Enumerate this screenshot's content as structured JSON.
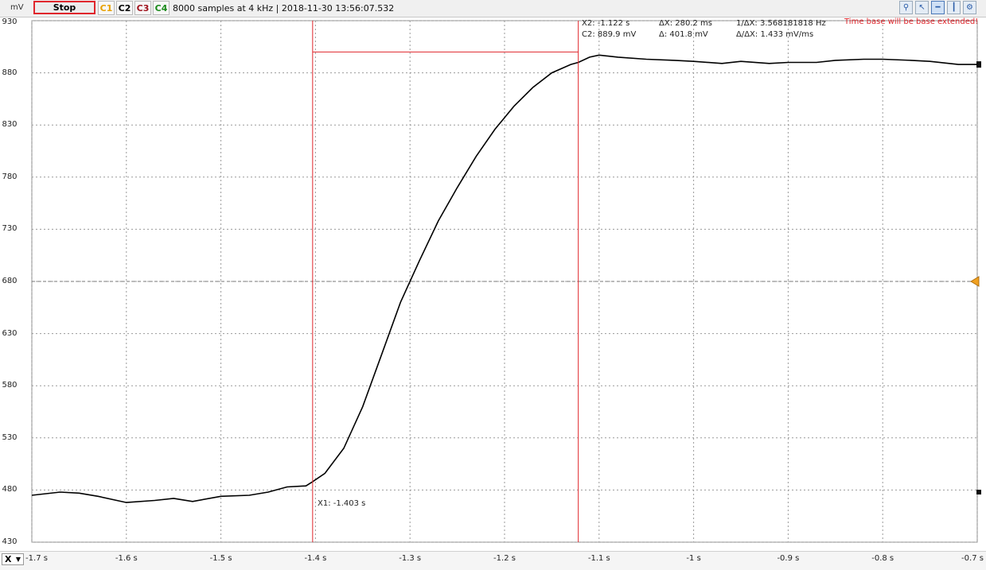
{
  "toolbar": {
    "unit": "mV",
    "stop_label": "Stop",
    "channels": [
      {
        "label": "C1",
        "color": "#e8a000"
      },
      {
        "label": "C2",
        "color": "#000000"
      },
      {
        "label": "C3",
        "color": "#a0141e"
      },
      {
        "label": "C4",
        "color": "#1a8a1a"
      }
    ],
    "info": "8000 samples at 4 kHz | 2018-11-30 13:56:07.532",
    "tools": [
      "zoom-icon",
      "pointer-icon",
      "cursor-horizontal-icon",
      "cursor-vertical-icon",
      "settings-icon"
    ]
  },
  "measurements": {
    "x2": "X2: -1.122 s",
    "c2": "C2: 889.9 mV",
    "dx": "ΔX: 280.2 ms",
    "dy": "Δ: 401.8 mV",
    "inv_dx": "1/ΔX: 3.568181818 Hz",
    "slope": "Δ/ΔX: 1.433 mV/ms",
    "warning": "Time base will be base extended!",
    "x1": "X1: -1.403 s"
  },
  "x_axis": {
    "selector": "X",
    "ticks": [
      "-1.7 s",
      "-1.6 s",
      "-1.5 s",
      "-1.4 s",
      "-1.3 s",
      "-1.2 s",
      "-1.1 s",
      "-1 s",
      "-0.9 s",
      "-0.8 s",
      "-0.7 s"
    ]
  },
  "chart_data": {
    "type": "line",
    "ylabel": "mV",
    "xlim": [
      -1.7,
      -0.7
    ],
    "ylim": [
      430,
      930
    ],
    "yticks": [
      930,
      880,
      830,
      780,
      730,
      680,
      630,
      580,
      530,
      480,
      430
    ],
    "xticks": [
      -1.7,
      -1.6,
      -1.5,
      -1.4,
      -1.3,
      -1.2,
      -1.1,
      -1.0,
      -0.9,
      -0.8,
      -0.7
    ],
    "trigger_level": 680,
    "cursors": {
      "x1": -1.403,
      "x2": -1.122,
      "y2": 889.9
    },
    "series": [
      {
        "color": "#000000",
        "x": [
          -1.7,
          -1.67,
          -1.65,
          -1.63,
          -1.6,
          -1.57,
          -1.55,
          -1.53,
          -1.5,
          -1.47,
          -1.45,
          -1.43,
          -1.41,
          -1.403,
          -1.39,
          -1.37,
          -1.35,
          -1.33,
          -1.31,
          -1.29,
          -1.27,
          -1.25,
          -1.23,
          -1.21,
          -1.19,
          -1.17,
          -1.15,
          -1.13,
          -1.122,
          -1.11,
          -1.1,
          -1.08,
          -1.05,
          -1.02,
          -1.0,
          -0.97,
          -0.95,
          -0.92,
          -0.9,
          -0.87,
          -0.85,
          -0.82,
          -0.8,
          -0.77,
          -0.75,
          -0.72,
          -0.7
        ],
        "y": [
          475,
          478,
          477,
          474,
          468,
          470,
          472,
          469,
          474,
          475,
          478,
          483,
          484,
          488,
          496,
          520,
          560,
          610,
          660,
          700,
          738,
          770,
          800,
          826,
          848,
          866,
          880,
          888,
          890,
          895,
          897,
          895,
          893,
          892,
          891,
          889,
          891,
          889,
          890,
          890,
          892,
          893,
          893,
          892,
          891,
          888,
          888
        ]
      }
    ]
  }
}
